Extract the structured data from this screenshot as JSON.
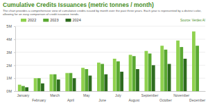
{
  "chart_data": {
    "type": "bar",
    "title": "Cumulative Credits Issuances (metric tonnes / month)",
    "subtitle": "The chart provides a comprehensive view of cumulative credits issued by month over the past three years. Each year is represented by a distinct color, allowing for an easy comparison of credit issuance trends.",
    "source": "Source: Verdex AI",
    "categories": [
      "January",
      "February",
      "March",
      "April",
      "May",
      "June",
      "July",
      "August",
      "September",
      "October",
      "November",
      "December"
    ],
    "series": [
      {
        "name": "2022",
        "color": "#8fd14f",
        "values": [
          0.5,
          1.0,
          1.3,
          1.4,
          1.8,
          2.2,
          2.5,
          2.8,
          3.1,
          3.5,
          3.9,
          4.6
        ]
      },
      {
        "name": "2023",
        "color": "#5aa832",
        "values": [
          0.4,
          1.0,
          1.3,
          1.4,
          1.7,
          2.1,
          2.3,
          2.7,
          2.9,
          3.2,
          3.4,
          3.5
        ]
      },
      {
        "name": "2024",
        "color": "#2e6b1f",
        "values": [
          0.3,
          0.6,
          0.9,
          1.0,
          1.2,
          1.3,
          1.5,
          1.7,
          2.0,
          2.1,
          2.5,
          null
        ]
      }
    ],
    "ylim": [
      0,
      5
    ],
    "yticks": [
      {
        "value": 0,
        "label": "0M"
      },
      {
        "value": 1,
        "label": "1M"
      },
      {
        "value": 2,
        "label": "2M"
      },
      {
        "value": 3,
        "label": "3M"
      },
      {
        "value": 4,
        "label": "4M"
      },
      {
        "value": 5,
        "label": "5M"
      }
    ],
    "grid": true,
    "legend": "top-left"
  }
}
